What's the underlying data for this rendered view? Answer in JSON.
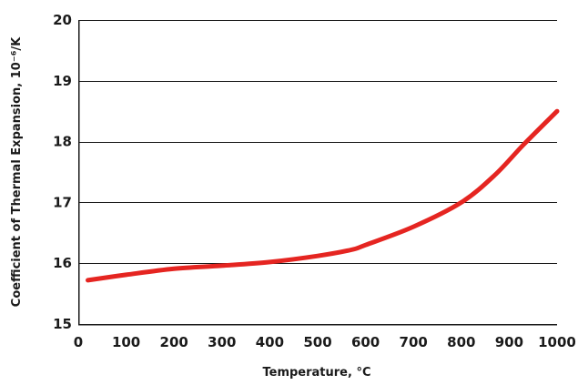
{
  "chart_data": {
    "type": "line",
    "xlabel": "Temperature, °C",
    "ylabel": "Coefficient of Thermal Expansion, 10⁻⁶/K",
    "xlim": [
      0,
      1000
    ],
    "ylim": [
      15,
      20
    ],
    "x_ticks": [
      "0",
      "100",
      "200",
      "300",
      "400",
      "500",
      "600",
      "700",
      "800",
      "900",
      "1000"
    ],
    "y_ticks": [
      "15",
      "16",
      "17",
      "18",
      "19",
      "20"
    ],
    "grid": "horizontal",
    "series": [
      {
        "color": "#e52521",
        "x": [
          20,
          100,
          200,
          300,
          400,
          500,
          570,
          600,
          700,
          800,
          870,
          930,
          1000
        ],
        "y": [
          15.72,
          15.81,
          15.91,
          15.96,
          16.02,
          16.12,
          16.22,
          16.3,
          16.6,
          17.0,
          17.45,
          17.95,
          18.5
        ]
      }
    ]
  }
}
